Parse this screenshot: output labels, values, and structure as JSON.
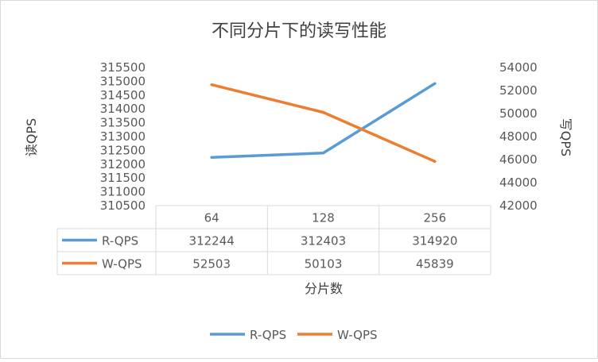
{
  "chart_data": {
    "type": "line",
    "title": "不同分片下的读写性能",
    "xlabel": "分片数",
    "categories": [
      "64",
      "128",
      "256"
    ],
    "y_left": {
      "label": "读QPS",
      "ylim": [
        310500,
        315500
      ],
      "ticks": [
        "310500",
        "311000",
        "311500",
        "312000",
        "312500",
        "313000",
        "313500",
        "314000",
        "314500",
        "315000",
        "315500"
      ]
    },
    "y_right": {
      "label": "写QPS",
      "ylim": [
        42000,
        54000
      ],
      "ticks": [
        "42000",
        "44000",
        "46000",
        "48000",
        "50000",
        "52000",
        "54000"
      ]
    },
    "series": [
      {
        "name": "R-QPS",
        "axis": "left",
        "color": "#5b9bd5",
        "values": [
          312244,
          312403,
          314920
        ]
      },
      {
        "name": "W-QPS",
        "axis": "right",
        "color": "#ed7d31",
        "values": [
          52503,
          50103,
          45839
        ]
      }
    ],
    "data_table": true,
    "grid": false,
    "legend": "bottom"
  }
}
